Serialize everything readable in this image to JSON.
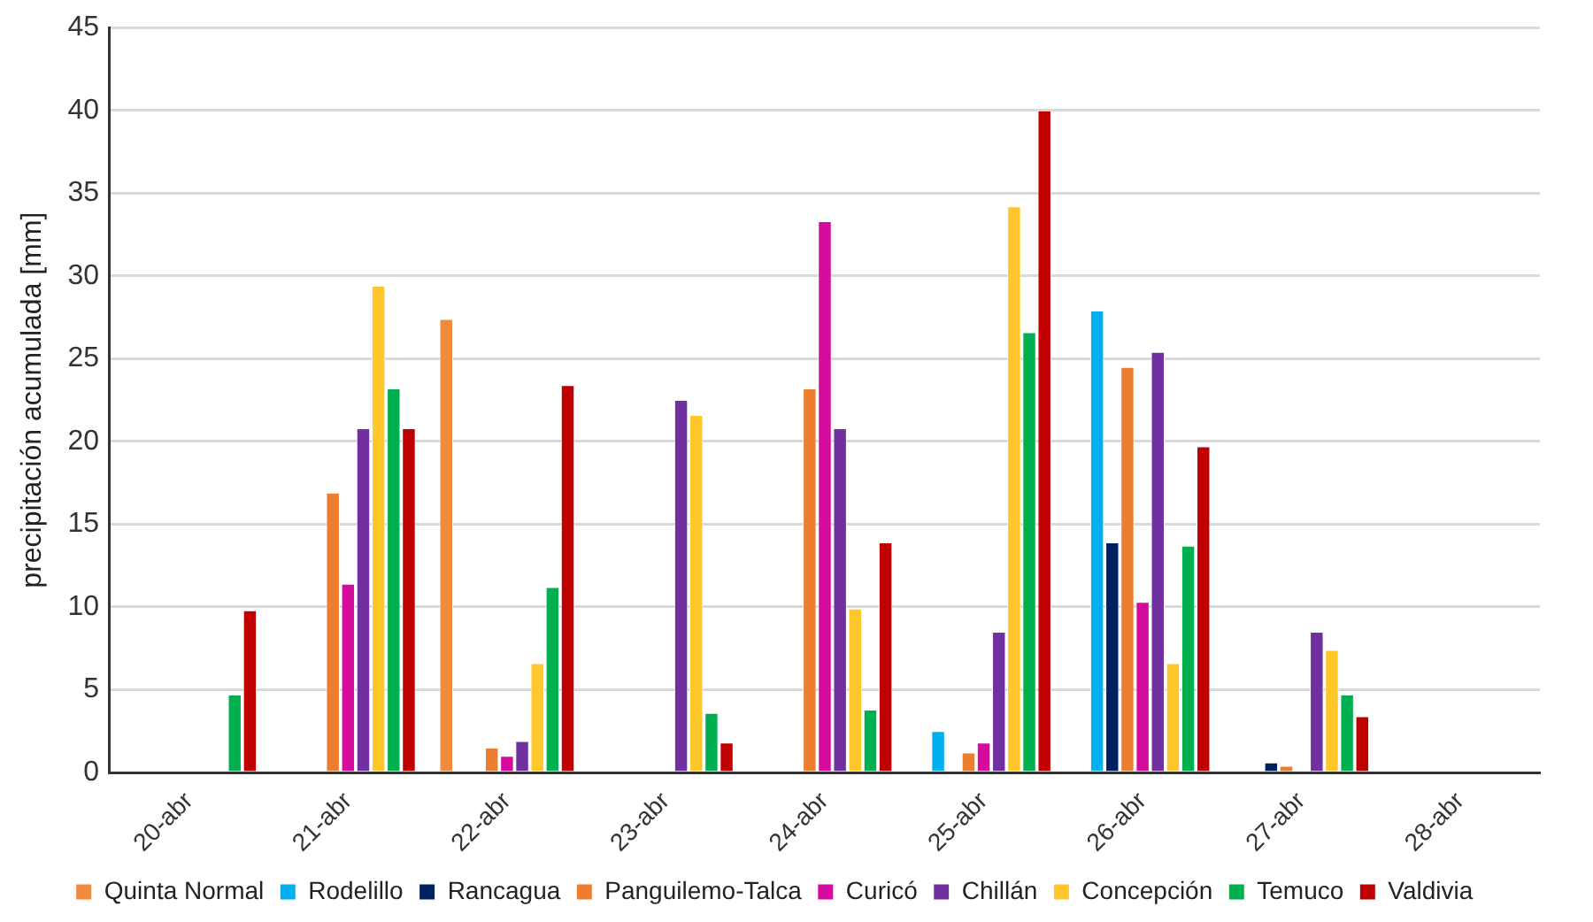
{
  "chart_data": {
    "type": "bar",
    "ylabel": "precipitación acumulada [mm]",
    "categories": [
      "20-abr",
      "21-abr",
      "22-abr",
      "23-abr",
      "24-abr",
      "25-abr",
      "26-abr",
      "27-abr",
      "28-abr"
    ],
    "series": [
      {
        "name": "Quinta Normal",
        "color": "#f08a3c",
        "values": [
          null,
          null,
          27.4,
          null,
          null,
          null,
          null,
          null,
          null
        ]
      },
      {
        "name": "Rodelillo",
        "color": "#00b0f0",
        "values": [
          null,
          null,
          null,
          null,
          null,
          2.5,
          27.9,
          null,
          null
        ]
      },
      {
        "name": "Rancagua",
        "color": "#002060",
        "values": [
          null,
          null,
          null,
          null,
          null,
          null,
          13.9,
          0.6,
          null
        ]
      },
      {
        "name": "Panguilemo-Talca",
        "color": "#ed7d31",
        "values": [
          null,
          16.9,
          1.5,
          null,
          23.2,
          1.2,
          24.5,
          0.4,
          null
        ]
      },
      {
        "name": "Curicó",
        "color": "#d40b9c",
        "values": [
          null,
          11.4,
          1.0,
          null,
          33.3,
          1.8,
          10.3,
          null,
          null
        ]
      },
      {
        "name": "Chillán",
        "color": "#7030a0",
        "values": [
          null,
          20.8,
          1.9,
          22.5,
          20.8,
          8.5,
          25.4,
          8.5,
          null
        ]
      },
      {
        "name": "Concepción",
        "color": "#ffc729",
        "values": [
          null,
          29.4,
          6.6,
          21.6,
          9.9,
          34.2,
          6.6,
          7.4,
          null
        ]
      },
      {
        "name": "Temuco",
        "color": "#00b050",
        "values": [
          4.7,
          23.2,
          11.2,
          3.6,
          3.8,
          26.6,
          13.7,
          4.7,
          null
        ]
      },
      {
        "name": "Valdivia",
        "color": "#c00000",
        "values": [
          9.8,
          20.8,
          23.4,
          1.8,
          13.9,
          40.0,
          19.7,
          3.4,
          null
        ]
      }
    ],
    "ylim": [
      0,
      45
    ],
    "yticks": [
      0,
      5,
      10,
      15,
      20,
      25,
      30,
      35,
      40,
      45
    ],
    "grid": "y",
    "legend": "bottom"
  }
}
